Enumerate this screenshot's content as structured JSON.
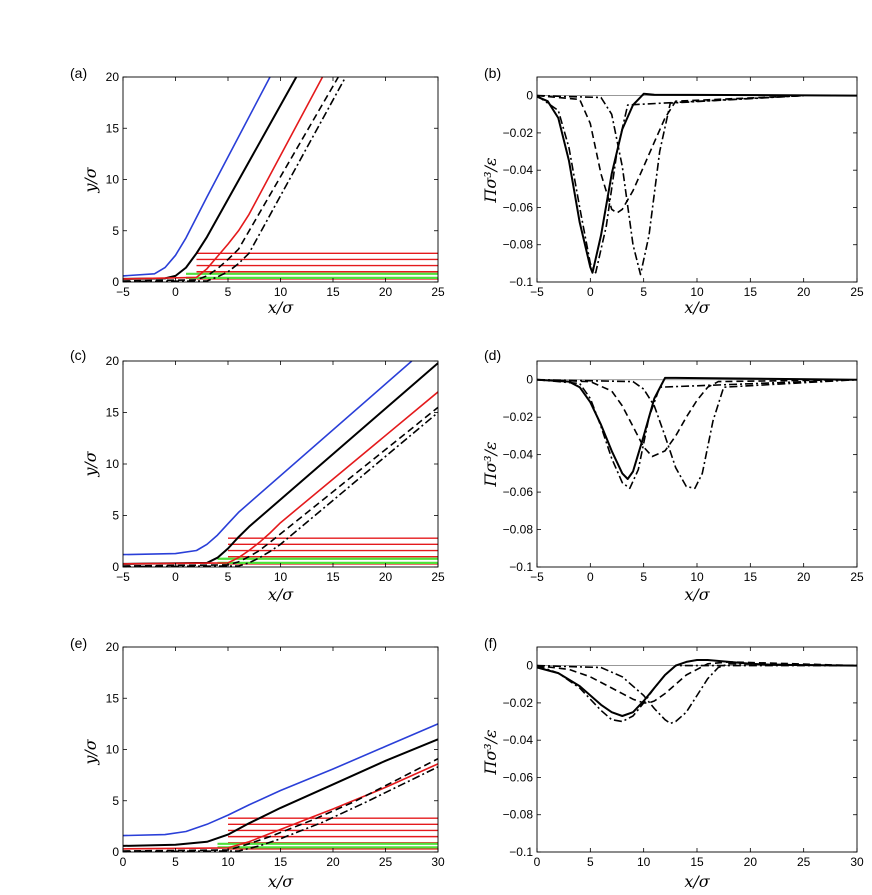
{
  "chart_data": [
    {
      "panel": "(a)",
      "type": "line",
      "xlabel": "x/σ",
      "ylabel": "y/σ",
      "xlim": [
        -5,
        25
      ],
      "ylim": [
        0,
        20
      ],
      "xticks": [
        "−5",
        "0",
        "5",
        "10",
        "15",
        "20",
        "25"
      ],
      "yticks": [
        "0",
        "5",
        "10",
        "15",
        "20"
      ],
      "series": [
        {
          "name": "blue",
          "color": "#2a3fd8",
          "style": "solid",
          "x": [
            -5,
            -2,
            -1,
            0,
            1,
            2,
            3,
            9
          ],
          "y": [
            0.6,
            0.8,
            1.4,
            2.6,
            4.3,
            6.3,
            8.3,
            20
          ]
        },
        {
          "name": "black",
          "color": "#000000",
          "style": "solid",
          "x": [
            -5,
            -1,
            0,
            1,
            2,
            3,
            11.5
          ],
          "y": [
            0.3,
            0.35,
            0.6,
            1.4,
            2.8,
            4.4,
            20
          ]
        },
        {
          "name": "red",
          "color": "#e41a1c",
          "style": "solid",
          "x": [
            -5,
            2,
            3,
            4,
            5,
            6,
            7,
            14
          ],
          "y": [
            0.3,
            0.45,
            1.3,
            2.5,
            3.7,
            5.0,
            6.6,
            20
          ]
        },
        {
          "name": "dashed",
          "color": "#000000",
          "style": "dashed",
          "x": [
            -5,
            2,
            3,
            4,
            5,
            6,
            15.5
          ],
          "y": [
            0.1,
            0.2,
            0.6,
            1.3,
            2.2,
            3.2,
            20
          ]
        },
        {
          "name": "dashdot",
          "color": "#000000",
          "style": "dashdot",
          "x": [
            -5,
            3,
            4,
            5,
            6,
            7,
            16.2
          ],
          "y": [
            0.05,
            0.1,
            0.5,
            1.0,
            1.8,
            2.8,
            20
          ]
        }
      ],
      "red_layers": {
        "x_start": 2,
        "x_end": 25,
        "y": [
          0.3,
          1.0,
          1.6,
          2.2,
          2.8
        ]
      },
      "green_layers": {
        "x_start": 1,
        "x_end": 25,
        "y": [
          0.4,
          0.8
        ]
      }
    },
    {
      "panel": "(b)",
      "type": "line",
      "xlabel": "x/σ",
      "ylabel": "Πσ³/ε",
      "xlim": [
        -5,
        25
      ],
      "ylim": [
        -0.1,
        0.01
      ],
      "xticks": [
        "−5",
        "0",
        "5",
        "10",
        "15",
        "20",
        "25"
      ],
      "yticks": [
        "−0.1",
        "−0.08",
        "−0.06",
        "−0.04",
        "−0.02",
        "0"
      ],
      "zero_line": true,
      "series": [
        {
          "name": "solid",
          "style": "solid",
          "x": [
            -5,
            -4,
            -3,
            -2,
            -1,
            0,
            0.2,
            1,
            2,
            3,
            4,
            5,
            6,
            25
          ],
          "y": [
            -0.0005,
            -0.003,
            -0.012,
            -0.035,
            -0.068,
            -0.092,
            -0.095,
            -0.075,
            -0.042,
            -0.018,
            -0.005,
            0.001,
            0.0005,
            0
          ]
        },
        {
          "name": "dashed",
          "style": "dashed",
          "x": [
            -5,
            -1,
            0,
            1,
            2,
            2.5,
            3,
            4,
            5,
            6,
            7,
            8,
            20
          ],
          "y": [
            0,
            -0.002,
            -0.015,
            -0.042,
            -0.061,
            -0.063,
            -0.061,
            -0.051,
            -0.038,
            -0.025,
            -0.012,
            -0.003,
            0
          ]
        },
        {
          "name": "dashdot-left",
          "style": "dashdot",
          "x": [
            -5,
            -3,
            -2,
            -1,
            0,
            0.5,
            1.5,
            2.5,
            3.5,
            20
          ],
          "y": [
            0,
            -0.008,
            -0.028,
            -0.06,
            -0.09,
            -0.095,
            -0.07,
            -0.03,
            -0.005,
            0
          ]
        },
        {
          "name": "dashdot-right",
          "style": "dashdot",
          "x": [
            -5,
            1,
            2,
            3,
            4,
            4.7,
            5.5,
            6.5,
            7.5,
            20
          ],
          "y": [
            0,
            -0.001,
            -0.01,
            -0.038,
            -0.08,
            -0.096,
            -0.075,
            -0.03,
            -0.004,
            0
          ]
        }
      ]
    },
    {
      "panel": "(c)",
      "type": "line",
      "xlabel": "x/σ",
      "ylabel": "y/σ",
      "xlim": [
        -5,
        25
      ],
      "ylim": [
        0,
        20
      ],
      "xticks": [
        "−5",
        "0",
        "5",
        "10",
        "15",
        "20",
        "25"
      ],
      "yticks": [
        "0",
        "5",
        "10",
        "15",
        "20"
      ],
      "series": [
        {
          "name": "blue",
          "color": "#2a3fd8",
          "style": "solid",
          "x": [
            -5,
            0,
            2,
            3,
            4,
            5,
            6,
            22.5
          ],
          "y": [
            1.2,
            1.3,
            1.6,
            2.2,
            3.1,
            4.2,
            5.3,
            20
          ]
        },
        {
          "name": "black",
          "color": "#000000",
          "style": "solid",
          "x": [
            -5,
            3,
            4,
            5,
            6,
            7,
            25
          ],
          "y": [
            0.3,
            0.4,
            0.9,
            1.8,
            2.9,
            3.9,
            19.8
          ]
        },
        {
          "name": "red",
          "color": "#e41a1c",
          "style": "solid",
          "x": [
            -5,
            5,
            6,
            7,
            8,
            9,
            10,
            25
          ],
          "y": [
            0.3,
            0.4,
            0.9,
            1.6,
            2.4,
            3.3,
            4.3,
            17.0
          ]
        },
        {
          "name": "dashed",
          "color": "#000000",
          "style": "dashed",
          "x": [
            -5,
            5,
            6,
            7,
            8,
            9,
            25
          ],
          "y": [
            0.1,
            0.2,
            0.5,
            1.0,
            1.6,
            2.4,
            15.5
          ]
        },
        {
          "name": "dashdot",
          "color": "#000000",
          "style": "dashdot",
          "x": [
            -5,
            6,
            7,
            8,
            9,
            10,
            25
          ],
          "y": [
            0.05,
            0.1,
            0.4,
            0.9,
            1.5,
            2.2,
            15.0
          ]
        }
      ],
      "red_layers": {
        "x_start": 5,
        "x_end": 25,
        "y": [
          0.3,
          1.0,
          1.6,
          2.2,
          2.8
        ]
      },
      "green_layers": {
        "x_start": 4,
        "x_end": 25,
        "y": [
          0.4,
          0.8
        ]
      }
    },
    {
      "panel": "(d)",
      "type": "line",
      "xlabel": "x/σ",
      "ylabel": "Πσ³/ε",
      "xlim": [
        -5,
        25
      ],
      "ylim": [
        -0.1,
        0.01
      ],
      "xticks": [
        "−5",
        "0",
        "5",
        "10",
        "15",
        "20",
        "25"
      ],
      "yticks": [
        "−0.1",
        "−0.08",
        "−0.06",
        "−0.04",
        "−0.02",
        "0"
      ],
      "zero_line": true,
      "series": [
        {
          "name": "solid",
          "style": "solid",
          "x": [
            -5,
            -2,
            -1,
            0,
            1,
            2,
            3,
            3.5,
            4,
            5,
            6,
            7,
            8,
            25
          ],
          "y": [
            0,
            -0.001,
            -0.004,
            -0.012,
            -0.024,
            -0.038,
            -0.05,
            -0.053,
            -0.049,
            -0.03,
            -0.01,
            0.001,
            0.001,
            0
          ]
        },
        {
          "name": "dashed",
          "style": "dashed",
          "x": [
            -5,
            0,
            2,
            3,
            4,
            5,
            5.8,
            7,
            8,
            9,
            10,
            11,
            12,
            25
          ],
          "y": [
            0,
            -0.001,
            -0.006,
            -0.014,
            -0.025,
            -0.036,
            -0.041,
            -0.038,
            -0.03,
            -0.02,
            -0.011,
            -0.004,
            -0.001,
            0
          ]
        },
        {
          "name": "dashdot-left",
          "style": "dashdot",
          "x": [
            -5,
            -1,
            0,
            1,
            2,
            3,
            3.7,
            4.5,
            5.5,
            6.5,
            25
          ],
          "y": [
            0,
            -0.002,
            -0.01,
            -0.025,
            -0.042,
            -0.055,
            -0.058,
            -0.048,
            -0.02,
            -0.004,
            0
          ]
        },
        {
          "name": "dashdot-right",
          "style": "dashdot",
          "x": [
            -5,
            4,
            5,
            6,
            7,
            8,
            9,
            9.8,
            10.5,
            11.5,
            12.5,
            25
          ],
          "y": [
            0,
            -0.001,
            -0.005,
            -0.014,
            -0.03,
            -0.047,
            -0.057,
            -0.058,
            -0.05,
            -0.022,
            -0.004,
            0
          ]
        }
      ]
    },
    {
      "panel": "(e)",
      "type": "line",
      "xlabel": "x/σ",
      "ylabel": "y/σ",
      "xlim": [
        0,
        30
      ],
      "ylim": [
        0,
        20
      ],
      "xticks": [
        "0",
        "5",
        "10",
        "15",
        "20",
        "25",
        "30"
      ],
      "yticks": [
        "0",
        "5",
        "10",
        "15",
        "20"
      ],
      "series": [
        {
          "name": "blue",
          "color": "#2a3fd8",
          "style": "solid",
          "x": [
            0,
            4,
            6,
            8,
            10,
            12,
            15,
            20,
            25,
            30
          ],
          "y": [
            1.6,
            1.7,
            2.0,
            2.7,
            3.6,
            4.6,
            6.0,
            8.1,
            10.3,
            12.5
          ]
        },
        {
          "name": "black",
          "color": "#000000",
          "style": "solid",
          "x": [
            0,
            5,
            8,
            10,
            12,
            15,
            20,
            25,
            30
          ],
          "y": [
            0.6,
            0.7,
            1.0,
            1.7,
            2.8,
            4.3,
            6.6,
            8.9,
            11.0
          ]
        },
        {
          "name": "red",
          "color": "#e41a1c",
          "style": "solid",
          "x": [
            0,
            10,
            12,
            14,
            16,
            18,
            20,
            25,
            30
          ],
          "y": [
            0.3,
            0.4,
            1.0,
            1.8,
            2.6,
            3.4,
            4.2,
            6.3,
            8.6
          ]
        },
        {
          "name": "dashed",
          "color": "#000000",
          "style": "dashed",
          "x": [
            0,
            10,
            12,
            14,
            16,
            18,
            22,
            26,
            30
          ],
          "y": [
            0.1,
            0.2,
            0.8,
            1.5,
            2.3,
            3.1,
            4.9,
            7.0,
            9.1
          ]
        },
        {
          "name": "dashdot",
          "color": "#000000",
          "style": "dashdot",
          "x": [
            0,
            11,
            13,
            15,
            17,
            19,
            23,
            27,
            30
          ],
          "y": [
            0.05,
            0.1,
            0.6,
            1.3,
            2.1,
            2.9,
            4.8,
            6.8,
            8.3
          ]
        }
      ],
      "red_layers": {
        "x_start": 10,
        "x_end": 30,
        "y": [
          0.3,
          0.9,
          1.5,
          2.1,
          2.7,
          3.3
        ]
      },
      "green_layers": {
        "x_start": 9,
        "x_end": 30,
        "y": [
          0.45,
          0.8
        ]
      }
    },
    {
      "panel": "(f)",
      "type": "line",
      "xlabel": "x/σ",
      "ylabel": "Πσ³/ε",
      "xlim": [
        0,
        30
      ],
      "ylim": [
        -0.1,
        0.01
      ],
      "xticks": [
        "0",
        "5",
        "10",
        "15",
        "20",
        "25",
        "30"
      ],
      "yticks": [
        "−0.1",
        "−0.08",
        "−0.06",
        "−0.04",
        "−0.02",
        "0"
      ],
      "zero_line": true,
      "series": [
        {
          "name": "solid",
          "style": "solid",
          "x": [
            0,
            2,
            4,
            6,
            7,
            8,
            9,
            10,
            11,
            12,
            13,
            14,
            15,
            16,
            18,
            20,
            22,
            30
          ],
          "y": [
            -0.001,
            -0.004,
            -0.011,
            -0.021,
            -0.025,
            -0.027,
            -0.025,
            -0.019,
            -0.012,
            -0.005,
            0,
            0.002,
            0.003,
            0.003,
            0.002,
            0.001,
            0.0005,
            0
          ]
        },
        {
          "name": "dashed",
          "style": "dashed",
          "x": [
            0,
            3,
            5,
            7,
            8,
            9,
            10,
            10.5,
            11,
            12,
            13,
            14,
            15,
            16,
            18,
            30
          ],
          "y": [
            0,
            -0.002,
            -0.006,
            -0.012,
            -0.015,
            -0.018,
            -0.02,
            -0.02,
            -0.019,
            -0.015,
            -0.01,
            -0.005,
            -0.002,
            0.001,
            0.002,
            0
          ]
        },
        {
          "name": "dashdot-left",
          "style": "dashdot",
          "x": [
            0,
            2,
            4,
            6,
            7,
            8,
            9,
            10,
            11,
            12,
            13,
            30
          ],
          "y": [
            0,
            -0.004,
            -0.012,
            -0.024,
            -0.029,
            -0.03,
            -0.027,
            -0.02,
            -0.012,
            -0.005,
            0,
            0
          ]
        },
        {
          "name": "dashdot-right",
          "style": "dashdot",
          "x": [
            0,
            6,
            8,
            10,
            11,
            12,
            12.5,
            13,
            14,
            15,
            16,
            17,
            18,
            30
          ],
          "y": [
            0,
            -0.001,
            -0.006,
            -0.016,
            -0.023,
            -0.029,
            -0.031,
            -0.03,
            -0.025,
            -0.016,
            -0.007,
            -0.001,
            0.001,
            0
          ]
        }
      ]
    }
  ]
}
